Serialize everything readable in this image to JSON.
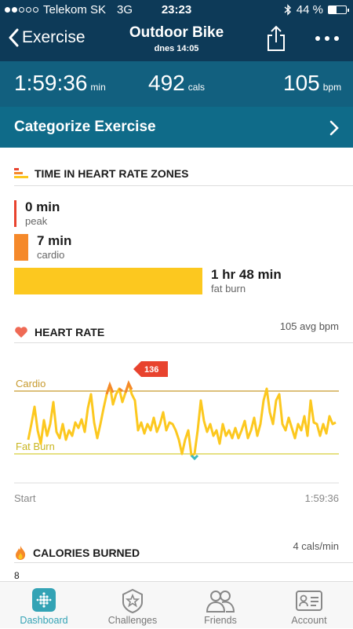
{
  "status_bar": {
    "carrier": "Telekom SK",
    "network": "3G",
    "time": "23:23",
    "battery": "44 %",
    "battery_level": 0.44,
    "signal_bars": 2
  },
  "nav": {
    "back_label": "Exercise",
    "title": "Outdoor Bike",
    "subtitle": "dnes 14:05"
  },
  "stats": {
    "duration": {
      "value": "1:59:36",
      "unit": "min"
    },
    "calories": {
      "value": "492",
      "unit": "cals"
    },
    "heart_rate": {
      "value": "105",
      "unit": "bpm"
    }
  },
  "categorize_label": "Categorize Exercise",
  "zones": {
    "title": "TIME IN HEART RATE ZONES",
    "items": [
      {
        "value": "0 min",
        "name": "peak",
        "color": "#e8432e"
      },
      {
        "value": "7 min",
        "name": "cardio",
        "color": "#f5892a"
      },
      {
        "value": "1 hr 48 min",
        "name": "fat burn",
        "color": "#fcc81f"
      }
    ]
  },
  "heart_rate": {
    "title": "HEART RATE",
    "avg": "105 avg bpm",
    "peak_badge": "136",
    "cardio_label": "Cardio",
    "fatburn_label": "Fat Burn",
    "start_label": "Start",
    "end_label": "1:59:36"
  },
  "calories_burned": {
    "title": "CALORIES BURNED",
    "rate": "4 cals/min",
    "axis_value": "8"
  },
  "tabs": [
    {
      "label": "Dashboard",
      "active": true
    },
    {
      "label": "Challenges",
      "active": false
    },
    {
      "label": "Friends",
      "active": false
    },
    {
      "label": "Account",
      "active": false
    }
  ],
  "colors": {
    "nav_bg": "#0d3a58",
    "stats_bg": "#12607f",
    "categorize_bg": "#0f6b89",
    "accent": "#33a3b5",
    "fat_burn": "#fcc81f",
    "cardio": "#f5892a",
    "peak": "#e8432e",
    "out_of_range": "#3cb7bf"
  }
}
